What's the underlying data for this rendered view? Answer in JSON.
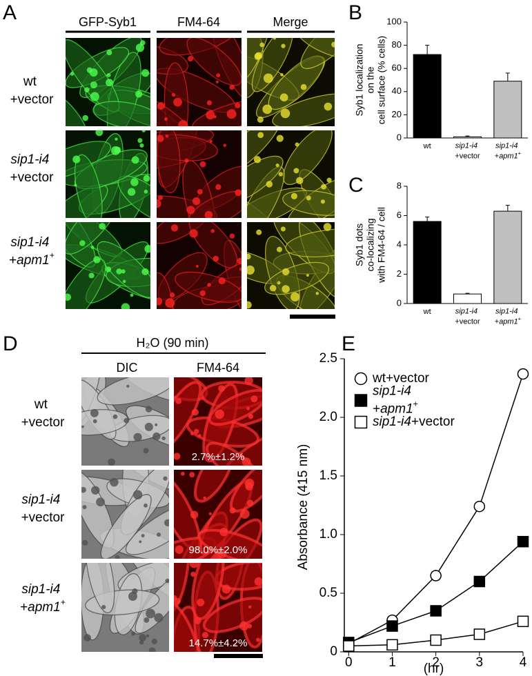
{
  "panel_a": {
    "label": "A",
    "columns": [
      "GFP-Syb1",
      "FM4-64",
      "Merge"
    ],
    "rows": [
      "wt +vector",
      "sip1-i4 +vector",
      "sip1-i4 +apm1+"
    ]
  },
  "panel_d": {
    "label": "D",
    "header": "H₂O (90 min)",
    "columns": [
      "DIC",
      "FM4-64"
    ],
    "rows": [
      "wt +vector",
      "sip1-i4 +vector",
      "sip1-i4 +apm1+"
    ],
    "percentages": [
      "2.7%±1.2%",
      "98.0%±2.0%",
      "14.7%±4.2%"
    ]
  },
  "chart_data": [
    {
      "type": "bar",
      "label": "B",
      "ylabel": [
        "Syb1 localization",
        "on the",
        "cell surface (% cells)"
      ],
      "categories": [
        "wt",
        "sip1-i4 +vector",
        "sip1-i4 +apm1+"
      ],
      "values": [
        72,
        1,
        49
      ],
      "errors": [
        8,
        0.7,
        7
      ],
      "colors": [
        "#000000",
        "#ffffff",
        "#c0c0c0"
      ],
      "ylim": [
        0,
        100
      ],
      "yticks": [
        0,
        20,
        40,
        60,
        80,
        100
      ]
    },
    {
      "type": "bar",
      "label": "C",
      "ylabel": [
        "Syb1 dots",
        "co-localizing",
        "with FM4-64 / cell"
      ],
      "categories": [
        "wt",
        "sip1-i4 +vector",
        "sip1-i4 +apm1+"
      ],
      "values": [
        5.6,
        0.65,
        6.3
      ],
      "errors": [
        0.3,
        0.05,
        0.4
      ],
      "colors": [
        "#000000",
        "#ffffff",
        "#c0c0c0"
      ],
      "ylim": [
        0,
        8
      ],
      "yticks": [
        0,
        2,
        4,
        6,
        8
      ]
    },
    {
      "type": "line",
      "label": "E",
      "xlabel": "(hr)",
      "ylabel": "Absorbance (415 nm)",
      "x": [
        0,
        1,
        2,
        3,
        4
      ],
      "xlim": [
        -0.1,
        4
      ],
      "xticks": [
        0,
        1,
        2,
        3,
        4
      ],
      "ylim": [
        0,
        2.5
      ],
      "yticks": [
        0,
        0.5,
        {
          "value": 1,
          "label": "1.0"
        },
        1.5,
        {
          "value": 2,
          "label": "2.0"
        },
        2.5
      ],
      "legend": "upper left",
      "series": [
        {
          "name": "wt+vector",
          "color": "#000000",
          "marker": "circle-open",
          "values": [
            0.07,
            0.27,
            0.65,
            1.24,
            2.37
          ]
        },
        {
          "name": "sip1-i4 +apm1+",
          "color": "#000000",
          "marker": "square-filled",
          "values": [
            0.08,
            0.22,
            0.35,
            0.6,
            0.94
          ]
        },
        {
          "name": "sip1-i4+vector",
          "color": "#000000",
          "marker": "square-open",
          "values": [
            0.05,
            0.06,
            0.1,
            0.15,
            0.26
          ]
        }
      ]
    }
  ]
}
